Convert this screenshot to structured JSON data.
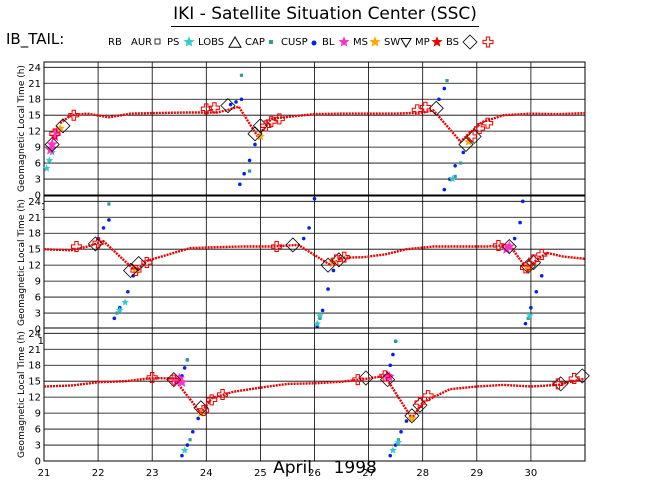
{
  "title": "IKI - Satellite Situation Center (SSC)",
  "dataset_label": "IB_TAIL:",
  "x_title": "April    1998",
  "legend": [
    {
      "label": "RB",
      "marker": "none",
      "color": "#000000"
    },
    {
      "label": "AUR",
      "marker": "small-square",
      "color": "#000000"
    },
    {
      "label": "PS",
      "marker": "star",
      "color": "#33cccc"
    },
    {
      "label": "LOBS",
      "marker": "triangle",
      "color": "#000000"
    },
    {
      "label": "CAP",
      "marker": "square",
      "color": "#339999"
    },
    {
      "label": "CUSP",
      "marker": "dot",
      "color": "#0022ee"
    },
    {
      "label": "BL",
      "marker": "star",
      "color": "#ff33cc"
    },
    {
      "label": "MS",
      "marker": "star",
      "color": "#ffaa00"
    },
    {
      "label": "SW",
      "marker": "triangle-down",
      "color": "#000000"
    },
    {
      "label": "MP",
      "marker": "star",
      "color": "#ee0000"
    },
    {
      "label": "BS",
      "marker": "diamond",
      "color": "#000000"
    },
    {
      "label": "",
      "marker": "cross",
      "color": "#ee0000"
    }
  ],
  "chart_data": [
    {
      "type": "scatter",
      "xlim": [
        1,
        11
      ],
      "ylim": [
        0,
        25
      ],
      "xticks": [
        "1",
        "2",
        "3",
        "4",
        "5",
        "6",
        "7",
        "8",
        "9",
        "10"
      ],
      "ylabel": "Geomagnetic Local Time (h)",
      "yticks": [
        "0",
        "3",
        "6",
        "9",
        "12",
        "15",
        "18",
        "21",
        "24"
      ],
      "grid": true,
      "mp_track": [
        [
          1.3,
          13.5
        ],
        [
          1.5,
          15.0
        ],
        [
          1.8,
          15.3
        ],
        [
          2.2,
          14.6
        ],
        [
          2.6,
          15.3
        ],
        [
          3.0,
          15.4
        ],
        [
          3.6,
          15.5
        ],
        [
          4.2,
          15.5
        ],
        [
          4.4,
          16.0
        ],
        [
          4.6,
          16.6
        ],
        [
          4.95,
          11.0
        ],
        [
          5.2,
          14.3
        ],
        [
          5.6,
          14.8
        ],
        [
          6.0,
          15.2
        ],
        [
          6.5,
          15.3
        ],
        [
          7.0,
          15.3
        ],
        [
          7.5,
          15.3
        ],
        [
          8.0,
          15.5
        ],
        [
          8.2,
          15.9
        ],
        [
          8.7,
          10.0
        ],
        [
          8.85,
          11.5
        ],
        [
          9.1,
          13.7
        ],
        [
          9.5,
          15.0
        ],
        [
          10.0,
          15.3
        ],
        [
          10.5,
          15.2
        ],
        [
          11.0,
          15.4
        ]
      ],
      "crosses": [
        [
          1.2,
          11.5
        ],
        [
          1.55,
          15.0
        ],
        [
          4.0,
          16.2
        ],
        [
          4.15,
          16.4
        ],
        [
          5.1,
          13.0
        ],
        [
          5.2,
          13.8
        ],
        [
          5.35,
          14.3
        ],
        [
          7.9,
          16.0
        ],
        [
          8.05,
          16.5
        ],
        [
          8.9,
          11.0
        ],
        [
          9.05,
          12.5
        ],
        [
          9.2,
          13.5
        ]
      ],
      "diamonds": [
        [
          1.15,
          9.5
        ],
        [
          1.35,
          13.0
        ],
        [
          4.4,
          16.8
        ],
        [
          4.9,
          11.5
        ],
        [
          5.0,
          13.0
        ],
        [
          8.25,
          16.3
        ],
        [
          8.8,
          9.5
        ],
        [
          8.95,
          11.0
        ]
      ],
      "cusp": [
        [
          4.45,
          17.0
        ],
        [
          4.55,
          17.5
        ],
        [
          4.65,
          18.0
        ],
        [
          4.62,
          2.0
        ],
        [
          4.7,
          4.0
        ],
        [
          4.8,
          6.5
        ],
        [
          4.9,
          9.5
        ],
        [
          8.3,
          18.0
        ],
        [
          8.4,
          20.0
        ],
        [
          8.4,
          1.0
        ],
        [
          8.5,
          3.0
        ],
        [
          8.6,
          5.5
        ],
        [
          8.75,
          8.0
        ]
      ],
      "cap": [
        [
          4.65,
          22.5
        ],
        [
          4.8,
          4.5
        ],
        [
          8.45,
          21.5
        ],
        [
          8.6,
          3.5
        ],
        [
          8.7,
          6.0
        ]
      ],
      "ps": [
        [
          1.05,
          5.0
        ],
        [
          1.1,
          6.5
        ],
        [
          1.15,
          8.0
        ],
        [
          8.55,
          3.0
        ]
      ],
      "bl": [
        [
          1.15,
          9.5
        ],
        [
          1.2,
          11.0
        ],
        [
          1.25,
          12.0
        ],
        [
          1.12,
          8.5
        ]
      ],
      "ms": [
        [
          1.3,
          12.5
        ],
        [
          5.0,
          11.0
        ],
        [
          8.85,
          10.0
        ]
      ]
    },
    {
      "type": "scatter",
      "xlim": [
        11,
        21
      ],
      "ylim": [
        0,
        25
      ],
      "xticks": [
        "11",
        "12",
        "13",
        "14",
        "15",
        "16",
        "17",
        "18",
        "19",
        "20"
      ],
      "ylabel": "Geomagnetic Local Time (h)",
      "yticks": [
        "0",
        "3",
        "6",
        "9",
        "12",
        "15",
        "18",
        "21",
        "24"
      ],
      "grid": true,
      "mp_track": [
        [
          11.0,
          15.0
        ],
        [
          11.5,
          14.8
        ],
        [
          11.8,
          15.5
        ],
        [
          12.1,
          16.5
        ],
        [
          12.7,
          10.8
        ],
        [
          12.9,
          12.8
        ],
        [
          13.3,
          14.0
        ],
        [
          13.7,
          15.2
        ],
        [
          14.2,
          15.4
        ],
        [
          14.7,
          15.5
        ],
        [
          15.2,
          15.5
        ],
        [
          15.7,
          15.8
        ],
        [
          16.3,
          12.0
        ],
        [
          16.5,
          13.4
        ],
        [
          16.9,
          13.5
        ],
        [
          17.3,
          14.0
        ],
        [
          17.7,
          15.0
        ],
        [
          18.2,
          15.5
        ],
        [
          18.7,
          15.5
        ],
        [
          19.2,
          15.5
        ],
        [
          19.6,
          15.8
        ],
        [
          19.95,
          11.0
        ],
        [
          20.1,
          13.0
        ],
        [
          20.3,
          14.3
        ],
        [
          20.6,
          13.6
        ],
        [
          21.0,
          13.2
        ]
      ],
      "crosses": [
        [
          11.6,
          15.5
        ],
        [
          12.0,
          16.2
        ],
        [
          12.7,
          11.0
        ],
        [
          12.9,
          12.5
        ],
        [
          15.3,
          15.5
        ],
        [
          16.4,
          13.0
        ],
        [
          16.55,
          13.5
        ],
        [
          19.4,
          15.7
        ],
        [
          19.9,
          11.5
        ],
        [
          20.05,
          13.0
        ],
        [
          20.2,
          14.0
        ]
      ],
      "diamonds": [
        [
          11.95,
          16.0
        ],
        [
          12.6,
          11.0
        ],
        [
          12.75,
          12.3
        ],
        [
          15.6,
          15.8
        ],
        [
          16.25,
          12.0
        ],
        [
          16.45,
          13.0
        ],
        [
          19.6,
          15.5
        ],
        [
          19.95,
          11.8
        ],
        [
          20.05,
          12.5
        ]
      ],
      "cusp": [
        [
          12.0,
          17.0
        ],
        [
          12.1,
          19.0
        ],
        [
          12.2,
          20.5
        ],
        [
          12.3,
          2.0
        ],
        [
          12.4,
          4.0
        ],
        [
          12.55,
          7.0
        ],
        [
          12.65,
          10.0
        ],
        [
          15.8,
          17.0
        ],
        [
          15.9,
          19.0
        ],
        [
          16.0,
          24.5
        ],
        [
          16.05,
          0.5
        ],
        [
          16.15,
          3.5
        ],
        [
          16.25,
          7.5
        ],
        [
          16.35,
          11.0
        ],
        [
          19.7,
          17.0
        ],
        [
          19.8,
          20.0
        ],
        [
          19.85,
          24.0
        ],
        [
          19.9,
          1.0
        ],
        [
          20.0,
          4.0
        ],
        [
          20.1,
          7.0
        ],
        [
          20.2,
          10.0
        ]
      ],
      "cap": [
        [
          12.2,
          23.5
        ],
        [
          12.35,
          3.0
        ],
        [
          16.1,
          2.0
        ],
        [
          19.95,
          2.0
        ]
      ],
      "ps": [
        [
          12.4,
          3.5
        ],
        [
          12.5,
          5.0
        ],
        [
          16.05,
          1.0
        ],
        [
          16.1,
          2.5
        ],
        [
          19.98,
          2.5
        ]
      ],
      "bl": [
        [
          19.6,
          15.5
        ],
        [
          19.55,
          15.0
        ]
      ],
      "ms": [
        [
          12.7,
          11.0
        ],
        [
          16.35,
          12.5
        ],
        [
          19.95,
          11.5
        ]
      ]
    },
    {
      "type": "scatter",
      "xlim": [
        21,
        31
      ],
      "ylim": [
        0,
        25
      ],
      "xticks": [
        "21",
        "22",
        "23",
        "24",
        "25",
        "26",
        "27",
        "28",
        "29",
        "30"
      ],
      "ylabel": "Geomagnetic Local Time (h)",
      "yticks": [
        "0",
        "3",
        "6",
        "9",
        "12",
        "15",
        "18",
        "21",
        "24"
      ],
      "grid": true,
      "mp_track": [
        [
          21.0,
          14.0
        ],
        [
          21.5,
          14.2
        ],
        [
          22.0,
          14.8
        ],
        [
          22.5,
          15.0
        ],
        [
          23.0,
          15.6
        ],
        [
          23.4,
          15.5
        ],
        [
          23.9,
          9.0
        ],
        [
          24.1,
          11.8
        ],
        [
          24.5,
          13.0
        ],
        [
          25.0,
          13.8
        ],
        [
          25.5,
          14.5
        ],
        [
          26.0,
          14.6
        ],
        [
          26.5,
          14.9
        ],
        [
          27.0,
          15.5
        ],
        [
          27.3,
          16.0
        ],
        [
          27.8,
          8.0
        ],
        [
          28.0,
          11.0
        ],
        [
          28.5,
          13.5
        ],
        [
          29.0,
          14.0
        ],
        [
          29.5,
          14.3
        ],
        [
          30.0,
          14.0
        ],
        [
          30.5,
          14.3
        ],
        [
          31.0,
          15.5
        ]
      ],
      "crosses": [
        [
          23.0,
          15.7
        ],
        [
          23.4,
          15.2
        ],
        [
          23.95,
          9.5
        ],
        [
          24.1,
          11.5
        ],
        [
          24.3,
          12.5
        ],
        [
          26.8,
          15.3
        ],
        [
          27.3,
          16.0
        ],
        [
          27.95,
          11.0
        ],
        [
          28.1,
          12.3
        ],
        [
          30.5,
          14.5
        ],
        [
          30.8,
          15.5
        ]
      ],
      "diamonds": [
        [
          23.4,
          15.3
        ],
        [
          23.9,
          10.0
        ],
        [
          26.95,
          15.6
        ],
        [
          27.35,
          15.3
        ],
        [
          27.8,
          8.5
        ],
        [
          27.95,
          10.5
        ],
        [
          30.55,
          14.5
        ],
        [
          30.95,
          16.0
        ]
      ],
      "cusp": [
        [
          23.55,
          16.0
        ],
        [
          23.6,
          17.5
        ],
        [
          23.65,
          19.0
        ],
        [
          23.55,
          1.0
        ],
        [
          23.65,
          3.0
        ],
        [
          23.75,
          5.5
        ],
        [
          23.85,
          8.0
        ],
        [
          27.4,
          18.0
        ],
        [
          27.45,
          20.0
        ],
        [
          27.5,
          22.5
        ],
        [
          27.4,
          1.0
        ],
        [
          27.5,
          3.0
        ],
        [
          27.6,
          5.5
        ],
        [
          27.7,
          7.5
        ]
      ],
      "cap": [
        [
          23.65,
          19.0
        ],
        [
          23.7,
          4.0
        ],
        [
          27.5,
          22.5
        ],
        [
          27.55,
          4.0
        ]
      ],
      "ps": [
        [
          23.6,
          2.0
        ],
        [
          27.45,
          2.0
        ],
        [
          27.55,
          3.5
        ]
      ],
      "bl": [
        [
          23.45,
          15.0
        ],
        [
          23.5,
          15.5
        ],
        [
          23.55,
          14.8
        ],
        [
          27.35,
          16.0
        ],
        [
          27.38,
          15.8
        ]
      ],
      "ms": [
        [
          23.9,
          9.0
        ],
        [
          27.8,
          8.0
        ]
      ]
    }
  ]
}
